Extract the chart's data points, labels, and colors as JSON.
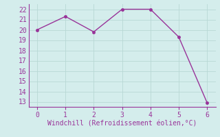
{
  "x": [
    0,
    1,
    2,
    3,
    4,
    5,
    6
  ],
  "y": [
    20.0,
    21.3,
    19.8,
    22.0,
    22.0,
    19.3,
    12.9
  ],
  "line_color": "#993399",
  "marker_color": "#993399",
  "background_color": "#d4edec",
  "grid_color": "#b8d8d5",
  "xlabel": "Windchill (Refroidissement éolien,°C)",
  "xlabel_color": "#993399",
  "tick_color": "#993399",
  "spine_color": "#993399",
  "ylim": [
    12.5,
    22.5
  ],
  "xlim": [
    -0.3,
    6.3
  ],
  "yticks": [
    13,
    14,
    15,
    16,
    17,
    18,
    19,
    20,
    21,
    22
  ],
  "xticks": [
    0,
    1,
    2,
    3,
    4,
    5,
    6
  ],
  "line_width": 1.0,
  "marker_size": 3,
  "font_size": 7,
  "xlabel_fontsize": 7
}
